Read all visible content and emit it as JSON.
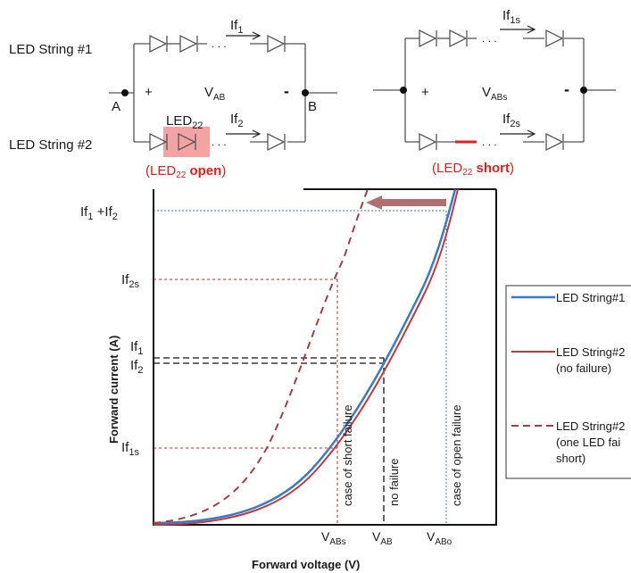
{
  "circuit": {
    "string1_label": "LED String #1",
    "string2_label": "LED String #2",
    "if1_main": "If",
    "if1_sub": "1",
    "if2_main": "If",
    "if2_sub": "2",
    "if1s_main": "If",
    "if1s_sub": "1s",
    "if2s_main": "If",
    "if2s_sub": "2s",
    "node_a": "A",
    "node_b": "B",
    "plus": "+",
    "minus": "-",
    "vab_main": "V",
    "vab_sub": "AB",
    "vabs_main": "V",
    "vabs_sub": "ABs",
    "led22_main": "LED",
    "led22_sub": "22",
    "open_caption_pre": "(LED",
    "open_caption_sub": "22",
    "open_caption_bold": " open",
    "open_caption_post": ")",
    "short_caption_pre": "(LED",
    "short_caption_sub": "22",
    "short_caption_bold": " short",
    "short_caption_post": ")",
    "dots": ". . .",
    "highlight_color": "#f3a3a3",
    "red_color": "#e0201c"
  },
  "chart": {
    "ylabel": "Forward current (A)",
    "xlabel": "Forward voltage (V)",
    "y_ticks": [
      {
        "main": "If",
        "sub": "1",
        "main2": " +If",
        "sub2": "2"
      },
      {
        "main": "If",
        "sub": "2s"
      },
      {
        "main": "If",
        "sub": "1"
      },
      {
        "main": "If",
        "sub": "2"
      },
      {
        "main": "If",
        "sub": "1s"
      }
    ],
    "x_ticks": [
      {
        "main": "V",
        "sub": "ABs"
      },
      {
        "main": "V",
        "sub": "AB"
      },
      {
        "main": "V",
        "sub": "ABo"
      }
    ],
    "annotations": [
      "case of short failure",
      "no failure",
      "case of open failure"
    ],
    "legend": [
      {
        "line1": "LED String#1",
        "line2": "",
        "line3": "",
        "color": "#3a78c8",
        "style": "solid"
      },
      {
        "line1": "LED String#2",
        "line2": "(no failure)",
        "line3": "",
        "color": "#c0393b",
        "style": "solid"
      },
      {
        "line1": "LED String#2",
        "line2": "(one LED fai",
        "line3": "short)",
        "color": "#a04040",
        "style": "dashed"
      }
    ],
    "colors": {
      "string1": "#3a78c8",
      "string2": "#c0393b",
      "short": "#a04040",
      "arrow": "#b07070",
      "guide_red": "#e0201c",
      "guide_blue": "#3a78c8"
    }
  }
}
